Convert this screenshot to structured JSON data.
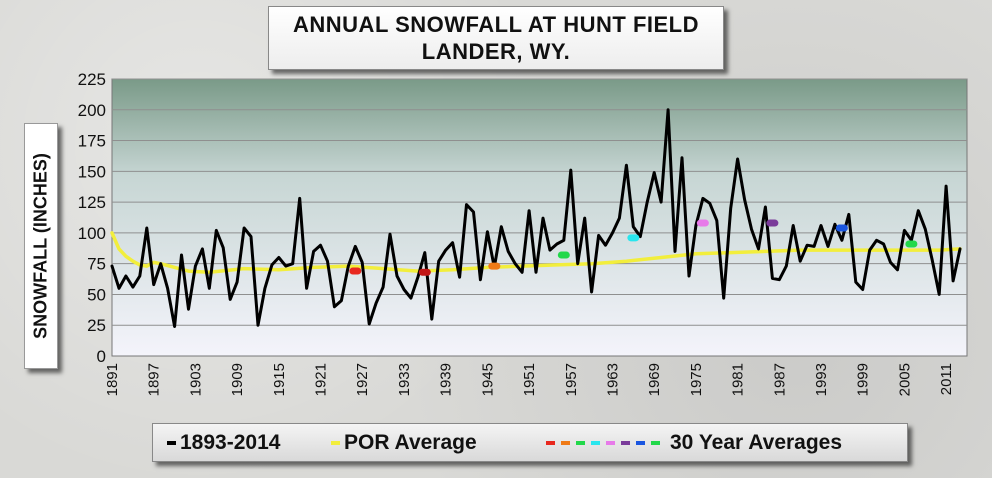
{
  "chart_data": {
    "type": "line",
    "title": "ANNUAL SNOWFALL AT HUNT FIELD",
    "subtitle": "LANDER, WY.",
    "ylabel": "SNOWFALL (INCHES)",
    "xlabel": "",
    "ylim": [
      0,
      225
    ],
    "yticks": [
      0,
      25,
      50,
      75,
      100,
      125,
      150,
      175,
      200,
      225
    ],
    "xlim": [
      1891,
      2014
    ],
    "xticks": [
      "1891",
      "1897",
      "1903",
      "1909",
      "1915",
      "1921",
      "1927",
      "1933",
      "1939",
      "1945",
      "1951",
      "1957",
      "1963",
      "1969",
      "1975",
      "1981",
      "1987",
      "1993",
      "1999",
      "2005",
      "2011"
    ],
    "grid": true,
    "legend_position": "bottom",
    "series": [
      {
        "name": "1893-2014",
        "color": "#000000",
        "x": [
          1891,
          1892,
          1893,
          1894,
          1895,
          1896,
          1897,
          1898,
          1899,
          1900,
          1901,
          1902,
          1903,
          1904,
          1905,
          1906,
          1907,
          1908,
          1909,
          1910,
          1911,
          1912,
          1913,
          1914,
          1915,
          1916,
          1917,
          1918,
          1919,
          1920,
          1921,
          1922,
          1923,
          1924,
          1925,
          1926,
          1927,
          1928,
          1929,
          1930,
          1931,
          1932,
          1933,
          1934,
          1935,
          1936,
          1937,
          1938,
          1939,
          1940,
          1941,
          1942,
          1943,
          1944,
          1945,
          1946,
          1947,
          1948,
          1949,
          1950,
          1951,
          1952,
          1953,
          1954,
          1955,
          1956,
          1957,
          1958,
          1959,
          1960,
          1961,
          1962,
          1963,
          1964,
          1965,
          1966,
          1967,
          1968,
          1969,
          1970,
          1971,
          1972,
          1973,
          1974,
          1975,
          1976,
          1977,
          1978,
          1979,
          1980,
          1981,
          1982,
          1983,
          1984,
          1985,
          1986,
          1987,
          1988,
          1989,
          1990,
          1991,
          1992,
          1993,
          1994,
          1995,
          1996,
          1997,
          1998,
          1999,
          2000,
          2001,
          2002,
          2003,
          2004,
          2005,
          2006,
          2007,
          2008,
          2009,
          2010,
          2011,
          2012,
          2013
        ],
        "values": [
          73,
          55,
          65,
          56,
          65,
          104,
          58,
          75,
          55,
          24,
          82,
          38,
          73,
          87,
          55,
          102,
          88,
          46,
          60,
          104,
          97,
          25,
          55,
          74,
          80,
          73,
          75,
          128,
          55,
          85,
          90,
          77,
          40,
          45,
          73,
          89,
          76,
          26,
          43,
          56,
          99,
          65,
          54,
          47,
          64,
          84,
          30,
          77,
          86,
          92,
          64,
          123,
          117,
          62,
          101,
          72,
          105,
          85,
          75,
          68,
          118,
          68,
          112,
          86,
          91,
          94,
          151,
          75,
          112,
          52,
          98,
          90,
          100,
          112,
          155,
          105,
          97,
          125,
          149,
          125,
          200,
          85,
          161,
          65,
          106,
          128,
          124,
          110,
          47,
          120,
          160,
          127,
          103,
          87,
          121,
          63,
          62,
          73,
          106,
          77,
          90,
          89,
          106,
          89,
          107,
          94,
          115,
          60,
          54,
          86,
          94,
          91,
          76,
          70,
          102,
          94,
          118,
          103,
          78,
          50,
          138,
          61,
          87
        ]
      },
      {
        "name": "POR Average",
        "color": "#f2ee3c",
        "x": [
          1891,
          1892,
          1893,
          1894,
          1895,
          1896,
          1897,
          1898,
          1900,
          1902,
          1905,
          1910,
          1915,
          1920,
          1925,
          1930,
          1935,
          1940,
          1945,
          1950,
          1955,
          1960,
          1965,
          1970,
          1975,
          1980,
          1985,
          1990,
          1995,
          2000,
          2005,
          2010,
          2013
        ],
        "values": [
          100,
          87,
          81,
          77,
          74,
          73,
          76,
          75,
          72,
          69,
          68,
          71,
          70,
          72,
          73,
          71,
          69,
          70,
          72,
          73,
          74,
          75,
          77,
          80,
          83,
          84,
          85,
          86,
          86,
          86,
          86,
          86,
          87
        ]
      }
    ],
    "thirty_year_averages": {
      "label": "30 Year Averages",
      "points": [
        {
          "x": 1926,
          "value": 69,
          "color": "#e8281e"
        },
        {
          "x": 1936,
          "value": 68,
          "color": "#c21616"
        },
        {
          "x": 1946,
          "value": 73,
          "color": "#ef7a16"
        },
        {
          "x": 1956,
          "value": 82,
          "color": "#22d84a"
        },
        {
          "x": 1966,
          "value": 96,
          "color": "#29e6ee"
        },
        {
          "x": 1976,
          "value": 108,
          "color": "#e77ae9"
        },
        {
          "x": 1986,
          "value": 108,
          "color": "#7a3b9a"
        },
        {
          "x": 1996,
          "value": 104,
          "color": "#1a56e0"
        },
        {
          "x": 2006,
          "value": 91,
          "color": "#22d84a"
        }
      ]
    },
    "legend": {
      "items": [
        {
          "label": "1893-2014",
          "color": "#000000"
        },
        {
          "label": "POR Average",
          "color": "#f2ee3c"
        },
        {
          "label": "30 Year Averages",
          "colors": [
            "#e8281e",
            "#ef7a16",
            "#22d84a",
            "#29e6ee",
            "#e77ae9",
            "#7a3b9a",
            "#1a56e0",
            "#22d84a"
          ]
        }
      ]
    },
    "plot_background": {
      "top": "#7a9a88",
      "bottom": "#f4f4fb"
    }
  }
}
